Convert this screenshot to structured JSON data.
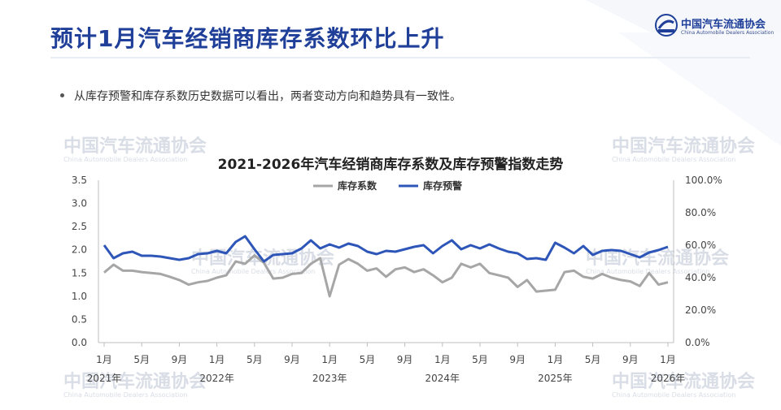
{
  "header": {
    "title": "预计1月汽车经销商库存系数环比上升",
    "logo_cn": "中国汽车流通协会",
    "logo_en": "China Automobile Dealers Association"
  },
  "bullet": {
    "text": "从库存预警和库存系数历史数据可以看出，两者变动方向和趋势具有一致性。"
  },
  "watermark": {
    "cn": "中国汽车流通协会",
    "en": "China Automobile Dealers Association"
  },
  "colors": {
    "title": "#1f3f99",
    "inventory_coefficient": "#a6a6a6",
    "inventory_warning": "#2e56b8"
  },
  "chart_data": {
    "type": "line",
    "title": "2021-2026年汽车经销商库存系数及库存预警指数走势",
    "legend_position": "top",
    "grid": false,
    "x": [
      "2021-01",
      "2021-02",
      "2021-03",
      "2021-04",
      "2021-05",
      "2021-06",
      "2021-07",
      "2021-08",
      "2021-09",
      "2021-10",
      "2021-11",
      "2021-12",
      "2022-01",
      "2022-02",
      "2022-03",
      "2022-04",
      "2022-05",
      "2022-06",
      "2022-07",
      "2022-08",
      "2022-09",
      "2022-10",
      "2022-11",
      "2022-12",
      "2023-01",
      "2023-02",
      "2023-03",
      "2023-04",
      "2023-05",
      "2023-06",
      "2023-07",
      "2023-08",
      "2023-09",
      "2023-10",
      "2023-11",
      "2023-12",
      "2024-01",
      "2024-02",
      "2024-03",
      "2024-04",
      "2024-05",
      "2024-06",
      "2024-07",
      "2024-08",
      "2024-09",
      "2024-10",
      "2024-11",
      "2024-12",
      "2025-01",
      "2025-02",
      "2025-03",
      "2025-04",
      "2025-05",
      "2025-06",
      "2025-07",
      "2025-08",
      "2025-09",
      "2025-10",
      "2025-11",
      "2025-12",
      "2026-01"
    ],
    "x_tick_labels": [
      {
        "month": "1月",
        "year": "2021年",
        "x": "2021-01"
      },
      {
        "month": "5月",
        "year": "",
        "x": "2021-05"
      },
      {
        "month": "9月",
        "year": "",
        "x": "2021-09"
      },
      {
        "month": "1月",
        "year": "2022年",
        "x": "2022-01"
      },
      {
        "month": "5月",
        "year": "",
        "x": "2022-05"
      },
      {
        "month": "9月",
        "year": "",
        "x": "2022-09"
      },
      {
        "month": "1月",
        "year": "2023年",
        "x": "2023-01"
      },
      {
        "month": "5月",
        "year": "",
        "x": "2023-05"
      },
      {
        "month": "9月",
        "year": "",
        "x": "2023-09"
      },
      {
        "month": "1月",
        "year": "2024年",
        "x": "2024-01"
      },
      {
        "month": "5月",
        "year": "",
        "x": "2024-05"
      },
      {
        "month": "9月",
        "year": "",
        "x": "2024-09"
      },
      {
        "month": "1月",
        "year": "2025年",
        "x": "2025-01"
      },
      {
        "month": "5月",
        "year": "",
        "x": "2025-05"
      },
      {
        "month": "9月",
        "year": "",
        "x": "2025-09"
      },
      {
        "month": "1月",
        "year": "2026年",
        "x": "2026-01"
      }
    ],
    "ylim_left": [
      0,
      3.5
    ],
    "y_ticks_left": [
      "0.0",
      "0.5",
      "1.0",
      "1.5",
      "2.0",
      "2.5",
      "3.0",
      "3.5"
    ],
    "ylim_right": [
      0,
      100
    ],
    "y_ticks_right": [
      "0.0%",
      "20.0%",
      "40.0%",
      "60.0%",
      "80.0%",
      "100.0%"
    ],
    "series": [
      {
        "name": "库存系数",
        "axis": "left",
        "values": [
          1.51,
          1.68,
          1.55,
          1.55,
          1.52,
          1.5,
          1.48,
          1.42,
          1.35,
          1.25,
          1.3,
          1.33,
          1.4,
          1.45,
          1.75,
          1.7,
          1.88,
          1.72,
          1.38,
          1.4,
          1.48,
          1.5,
          1.7,
          1.82,
          1.0,
          1.68,
          1.8,
          1.7,
          1.55,
          1.6,
          1.42,
          1.58,
          1.62,
          1.52,
          1.58,
          1.45,
          1.3,
          1.4,
          1.7,
          1.62,
          1.7,
          1.5,
          1.45,
          1.4,
          1.2,
          1.35,
          1.1,
          1.12,
          1.14,
          1.52,
          1.55,
          1.42,
          1.38,
          1.48,
          1.4,
          1.35,
          1.32,
          1.22,
          1.5,
          1.25,
          1.3
        ]
      },
      {
        "name": "库存预警",
        "axis": "right",
        "values": [
          60.0,
          52.0,
          55.0,
          56.0,
          53.5,
          53.5,
          53.0,
          52.0,
          51.0,
          52.0,
          54.5,
          55.0,
          56.5,
          55.0,
          62.0,
          65.5,
          57.5,
          50.0,
          54.0,
          54.5,
          55.0,
          58.0,
          63.0,
          58.0,
          60.5,
          58.5,
          61.0,
          59.5,
          56.0,
          54.5,
          56.5,
          56.0,
          57.5,
          59.0,
          60.0,
          55.0,
          59.5,
          63.0,
          57.5,
          60.0,
          58.0,
          60.5,
          58.0,
          56.0,
          55.0,
          51.5,
          52.0,
          51.0,
          61.5,
          58.5,
          55.0,
          59.5,
          54.0,
          56.5,
          57.0,
          56.5,
          54.5,
          52.5,
          55.5,
          57.0,
          59.0
        ]
      }
    ]
  }
}
